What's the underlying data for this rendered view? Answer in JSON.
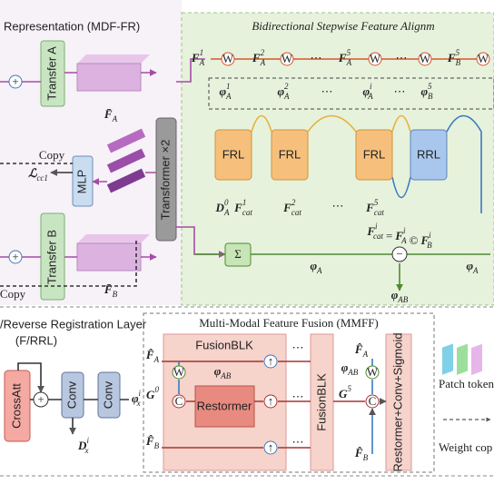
{
  "top_left": {
    "title": "Representation (MDF-FR)",
    "transfer_a": "Transfer A",
    "transfer_b": "Transfer B",
    "mlp": "MLP",
    "transformer": "Transformer ×2",
    "copy_1": "Copy",
    "copy_2": "Copy",
    "plus": "+",
    "loss": {
      "base": "ℒ",
      "sub": "cc1"
    },
    "feat_a": {
      "base": "F̄",
      "sub": "A"
    },
    "feat_b": {
      "base": "F̄",
      "sub": "B"
    }
  },
  "top_right": {
    "title": "Bidirectional Stepwise Feature Alignm",
    "w": "W",
    "ellipsis": "⋯",
    "features": [
      {
        "base": "F",
        "sub": "A",
        "sup": "1"
      },
      {
        "base": "F",
        "sub": "A",
        "sup": "2"
      },
      {
        "base": "F",
        "sub": "A",
        "sup": "5"
      },
      {
        "base": "F",
        "sub": "B",
        "sup": "5"
      }
    ],
    "phis": [
      {
        "base": "φ",
        "sub": "A",
        "sup": "1"
      },
      {
        "base": "φ",
        "sub": "A",
        "sup": "2"
      },
      {
        "base": "φ",
        "sub": "A",
        "sup": "i"
      },
      {
        "base": "φ",
        "sub": "B",
        "sup": "5"
      }
    ],
    "blocks": [
      "FRL",
      "FRL",
      "FRL",
      "RRL"
    ],
    "inputs": [
      {
        "base": "D",
        "sub": "A",
        "sup": "0"
      },
      {
        "base": "F",
        "sub": "cat",
        "sup": "1"
      },
      {
        "base": "F",
        "sub": "cat",
        "sup": "2"
      },
      {
        "base": "F",
        "sub": "cat",
        "sup": "5"
      }
    ],
    "equation": [
      {
        "base": "F",
        "sub": "cat",
        "sup": "i"
      },
      "=",
      {
        "base": "F",
        "sub": "A",
        "sup": "i"
      },
      "©",
      {
        "base": "F",
        "sub": "B",
        "sup": "i"
      }
    ],
    "sigma": "Σ",
    "minus": "−",
    "phi_a": {
      "base": "φ",
      "sub": "A"
    },
    "phi_ab": {
      "base": "φ",
      "sub": "AB"
    }
  },
  "registration": {
    "title": "/Reverse Registration Layer",
    "subtitle": "(F/RRL)",
    "crossatt": "CrossAtt",
    "conv": "Conv",
    "plus": "+",
    "phi": {
      "base": "φ",
      "sub": "x",
      "sup": "i"
    },
    "d": {
      "base": "D",
      "sub": "x",
      "sup": "i"
    }
  },
  "fusion": {
    "title": "Multi-Modal Feature Fusion (MMFF)",
    "block": "FusionBLK",
    "restormer": "Restormer",
    "final": "Restormer+Conv+Sigmoid",
    "w": "W",
    "c": "C",
    "up": "↑",
    "ellipsis": "⋯",
    "fa": {
      "base": "F̂",
      "sub": "A"
    },
    "fb": {
      "base": "F̂",
      "sub": "B"
    },
    "g0": {
      "base": "G",
      "sup": "0"
    },
    "g5": {
      "base": "G",
      "sup": "5"
    },
    "phi_ab": {
      "base": "φ",
      "sub": "AB"
    }
  },
  "legend": {
    "patch": "Patch token",
    "weight": "Weight cop"
  }
}
